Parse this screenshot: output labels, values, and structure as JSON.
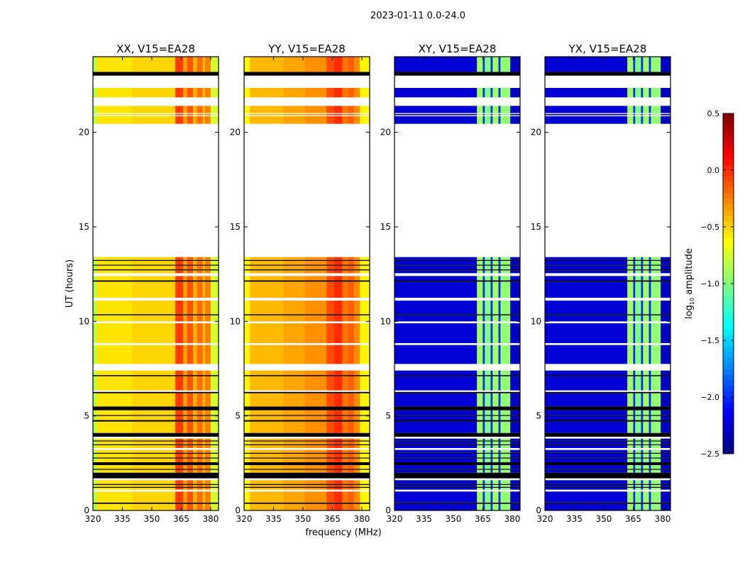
{
  "chart_data": {
    "type": "heatmap",
    "suptitle": "2023-01-11 0.0-24.0",
    "xlabel": "frequency (MHz)",
    "ylabel": "UT (hours)",
    "xlim": [
      320,
      384
    ],
    "ylim": [
      0,
      24
    ],
    "xticks": [
      "320",
      "335",
      "350",
      "365",
      "380"
    ],
    "xtick_values": [
      320,
      335,
      350,
      365,
      380
    ],
    "yticks": [
      "0",
      "5",
      "10",
      "15",
      "20"
    ],
    "ytick_values": [
      0,
      5,
      10,
      15,
      20
    ],
    "colorbar": {
      "label_main": "log",
      "label_sub": "10",
      "label_rest": " amplitude",
      "range": [
        -2.5,
        0.5
      ],
      "colormap": "jet",
      "ticks": [
        "0.5",
        "0.0",
        "−0.5",
        "−1.0",
        "−1.5",
        "−2.0",
        "−2.5"
      ],
      "tick_values": [
        0.5,
        0.0,
        -0.5,
        -1.0,
        -1.5,
        -2.0,
        -2.5
      ]
    },
    "time_segments_hours": [
      [
        0.0,
        0.35,
        "data"
      ],
      [
        0.35,
        0.42,
        "zero"
      ],
      [
        0.42,
        1.0,
        "data"
      ],
      [
        1.1,
        1.2,
        "data"
      ],
      [
        1.2,
        1.25,
        "zero"
      ],
      [
        1.25,
        1.35,
        "data"
      ],
      [
        1.35,
        1.4,
        "zero"
      ],
      [
        1.4,
        1.6,
        "data"
      ],
      [
        1.7,
        2.0,
        "zero"
      ],
      [
        2.0,
        2.15,
        "data"
      ],
      [
        2.15,
        2.2,
        "zero"
      ],
      [
        2.2,
        2.4,
        "data"
      ],
      [
        2.4,
        2.55,
        "zero"
      ],
      [
        2.55,
        2.75,
        "data"
      ],
      [
        2.75,
        2.8,
        "zero"
      ],
      [
        2.8,
        3.0,
        "data"
      ],
      [
        3.0,
        3.05,
        "zero"
      ],
      [
        3.05,
        3.2,
        "data"
      ],
      [
        3.3,
        3.45,
        "data"
      ],
      [
        3.45,
        3.5,
        "zero"
      ],
      [
        3.5,
        3.65,
        "data"
      ],
      [
        3.65,
        3.7,
        "zero"
      ],
      [
        3.7,
        3.8,
        "data"
      ],
      [
        3.9,
        4.1,
        "zero"
      ],
      [
        4.1,
        4.7,
        "data"
      ],
      [
        4.7,
        4.78,
        "zero"
      ],
      [
        4.78,
        5.0,
        "data"
      ],
      [
        5.0,
        5.05,
        "zero"
      ],
      [
        5.05,
        5.3,
        "data"
      ],
      [
        5.3,
        5.5,
        "zero"
      ],
      [
        5.5,
        6.2,
        "data"
      ],
      [
        6.2,
        6.27,
        "zero"
      ],
      [
        6.35,
        7.1,
        "data"
      ],
      [
        7.1,
        7.16,
        "zero"
      ],
      [
        7.16,
        7.4,
        "data"
      ],
      [
        7.75,
        8.75,
        "data"
      ],
      [
        8.85,
        9.9,
        "data"
      ],
      [
        10.0,
        10.32,
        "data"
      ],
      [
        10.32,
        10.38,
        "zero"
      ],
      [
        10.38,
        11.1,
        "data"
      ],
      [
        11.25,
        12.1,
        "data"
      ],
      [
        12.1,
        12.17,
        "zero"
      ],
      [
        12.17,
        12.4,
        "data"
      ],
      [
        12.55,
        12.7,
        "data"
      ],
      [
        12.7,
        12.75,
        "zero"
      ],
      [
        12.75,
        12.95,
        "data"
      ],
      [
        12.95,
        13.0,
        "zero"
      ],
      [
        13.0,
        13.2,
        "data"
      ],
      [
        13.2,
        13.25,
        "zero"
      ],
      [
        13.25,
        13.4,
        "data"
      ],
      [
        20.45,
        20.85,
        "data"
      ],
      [
        20.9,
        20.97,
        "data"
      ],
      [
        21.02,
        21.4,
        "data"
      ],
      [
        21.85,
        22.35,
        "data"
      ],
      [
        23.0,
        23.2,
        "zero"
      ],
      [
        23.2,
        24.0,
        "data"
      ]
    ],
    "panels": [
      {
        "title": "XX, V15=EA28",
        "bands": [
          [
            320,
            322,
            -0.85
          ],
          [
            322,
            340,
            -0.55
          ],
          [
            340,
            362,
            -0.5
          ],
          [
            362,
            366,
            -0.05
          ],
          [
            366,
            368,
            -0.35
          ],
          [
            368,
            371,
            -0.12
          ],
          [
            371,
            373,
            -0.4
          ],
          [
            373,
            376,
            -0.2
          ],
          [
            376,
            377,
            -0.45
          ],
          [
            377,
            380,
            -0.25
          ],
          [
            380,
            384,
            -0.75
          ]
        ]
      },
      {
        "title": "YY, V15=EA28",
        "bands": [
          [
            320,
            323,
            -0.6
          ],
          [
            323,
            340,
            -0.42
          ],
          [
            340,
            351,
            -0.36
          ],
          [
            351,
            362,
            -0.3
          ],
          [
            362,
            366,
            -0.1
          ],
          [
            366,
            370,
            0.0
          ],
          [
            370,
            373,
            -0.22
          ],
          [
            373,
            376,
            -0.15
          ],
          [
            376,
            379,
            -0.28
          ],
          [
            379,
            384,
            -0.6
          ]
        ]
      },
      {
        "title": "XY, V15=EA28",
        "bands": [
          [
            320,
            362,
            -2.25
          ],
          [
            362,
            365,
            -0.9
          ],
          [
            365,
            366,
            -2.0
          ],
          [
            366,
            369,
            -1.0
          ],
          [
            369,
            370,
            -2.0
          ],
          [
            370,
            373,
            -0.9
          ],
          [
            373,
            374,
            -2.0
          ],
          [
            374,
            379,
            -0.95
          ],
          [
            379,
            384,
            -2.3
          ]
        ]
      },
      {
        "title": "YX, V15=EA28",
        "bands": [
          [
            320,
            362,
            -2.25
          ],
          [
            362,
            365,
            -0.9
          ],
          [
            365,
            366,
            -2.0
          ],
          [
            366,
            369,
            -1.0
          ],
          [
            369,
            370,
            -2.0
          ],
          [
            370,
            373,
            -0.9
          ],
          [
            373,
            374,
            -2.0
          ],
          [
            374,
            379,
            -0.95
          ],
          [
            379,
            384,
            -2.3
          ]
        ]
      }
    ]
  }
}
